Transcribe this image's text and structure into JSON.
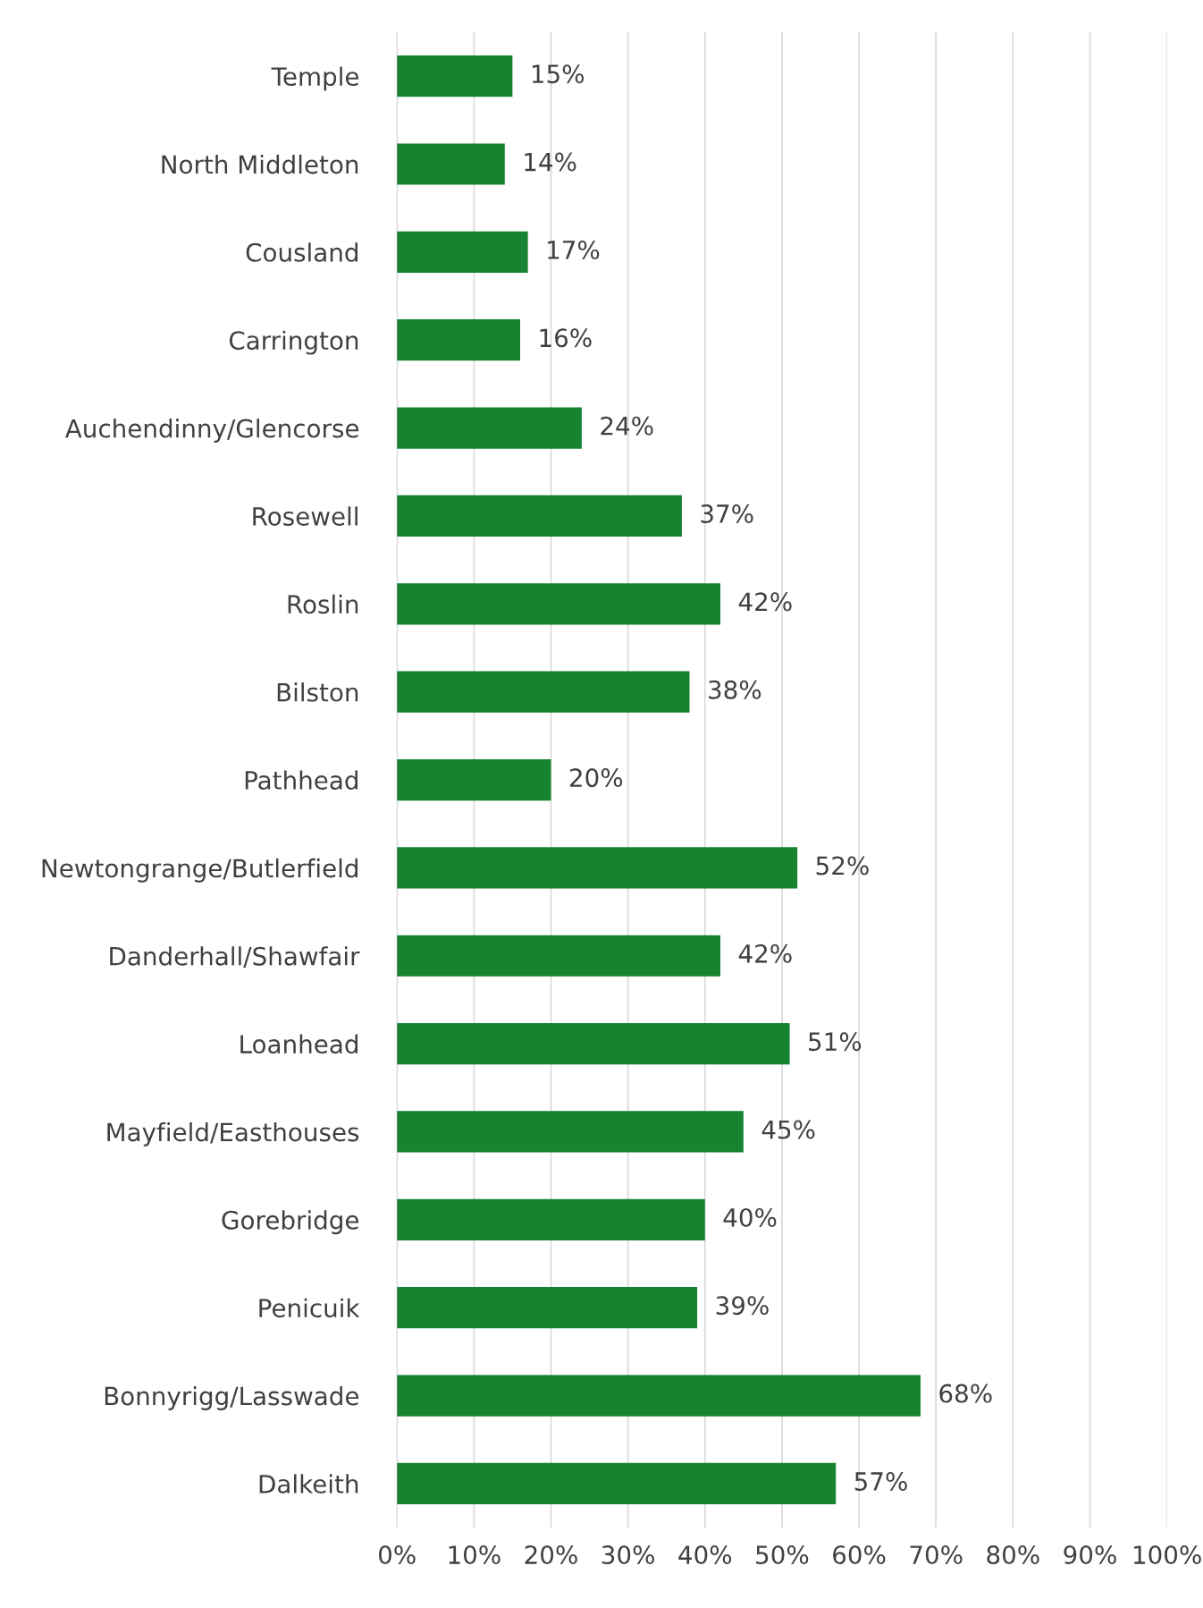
{
  "chart_data": {
    "type": "bar",
    "orientation": "horizontal",
    "categories": [
      "Temple",
      "North Middleton",
      "Cousland",
      "Carrington",
      "Auchendinny/Glencorse",
      "Rosewell",
      "Roslin",
      "Bilston",
      "Pathhead",
      "Newtongrange/Butlerfield",
      "Danderhall/Shawfair",
      "Loanhead",
      "Mayfield/Easthouses",
      "Gorebridge",
      "Penicuik",
      "Bonnyrigg/Lasswade",
      "Dalkeith"
    ],
    "values": [
      15,
      14,
      17,
      16,
      24,
      37,
      42,
      38,
      20,
      52,
      42,
      51,
      45,
      40,
      39,
      68,
      57
    ],
    "value_labels": [
      "15%",
      "14%",
      "17%",
      "16%",
      "24%",
      "37%",
      "42%",
      "38%",
      "20%",
      "52%",
      "42%",
      "51%",
      "45%",
      "40%",
      "39%",
      "68%",
      "57%"
    ],
    "color": "#178230",
    "xlim": [
      0,
      100
    ],
    "xticks": [
      {
        "value": 0,
        "label": "0%"
      },
      {
        "value": 10,
        "label": "10%"
      },
      {
        "value": 20,
        "label": "20%"
      },
      {
        "value": 30,
        "label": "30%"
      },
      {
        "value": 40,
        "label": "40%"
      },
      {
        "value": 50,
        "label": "50%"
      },
      {
        "value": 60,
        "label": "60%"
      },
      {
        "value": 70,
        "label": "70%"
      },
      {
        "value": 80,
        "label": "80%"
      },
      {
        "value": 90,
        "label": "90%"
      },
      {
        "value": 100,
        "label": "100%"
      }
    ],
    "grid": "x"
  }
}
